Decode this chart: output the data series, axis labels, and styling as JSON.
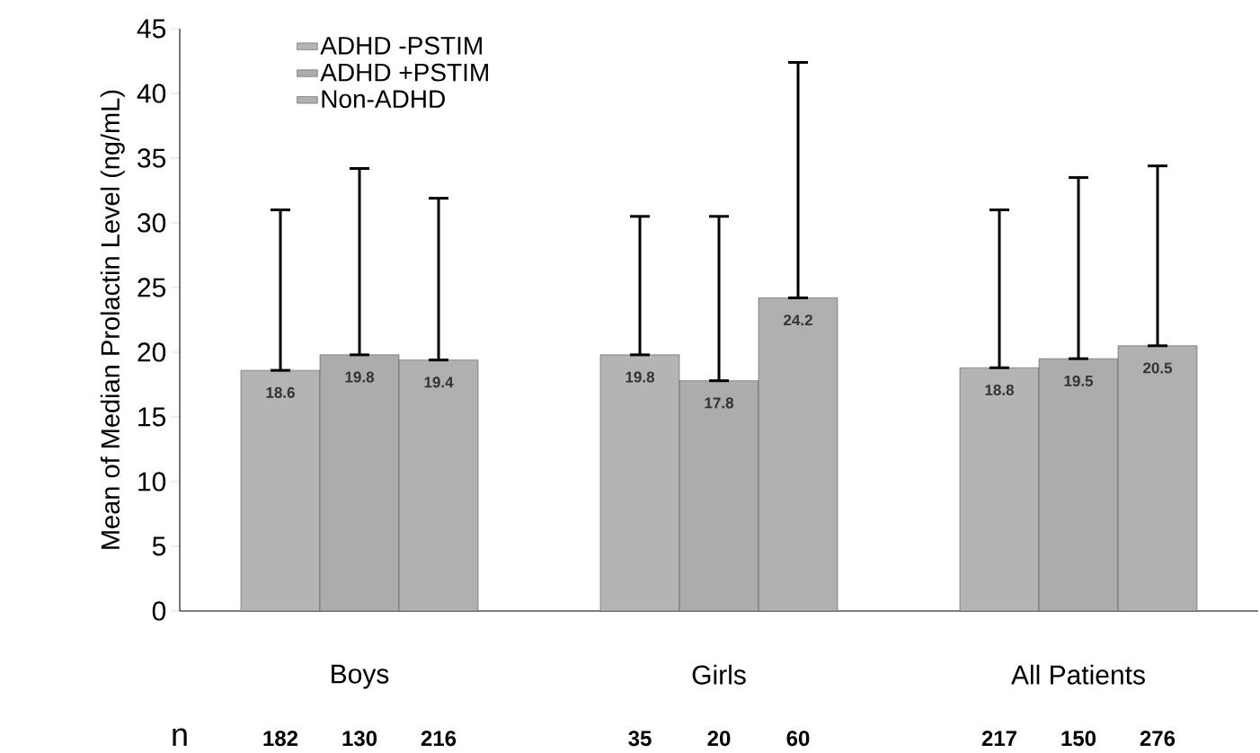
{
  "chart_data": {
    "type": "bar",
    "ylabel": "Mean of Median Prolactin Level (ng/mL)",
    "categories": [
      "Boys",
      "Girls",
      "All Patients"
    ],
    "series": [
      {
        "name": "ADHD -PSTIM",
        "color": "#b4b4b4",
        "values": [
          18.6,
          19.8,
          18.8
        ],
        "errors": [
          [
            18.6,
            31.0
          ],
          [
            19.8,
            30.5
          ],
          [
            18.8,
            31.0
          ]
        ]
      },
      {
        "name": "ADHD +PSTIM",
        "color": "#acacac",
        "values": [
          19.8,
          17.8,
          19.5
        ],
        "errors": [
          [
            19.8,
            34.2
          ],
          [
            17.8,
            30.5
          ],
          [
            19.5,
            33.5
          ]
        ]
      },
      {
        "name": "Non-ADHD",
        "color": "#b0b0b0",
        "values": [
          19.4,
          24.2,
          20.5
        ],
        "errors": [
          [
            19.4,
            31.9
          ],
          [
            24.2,
            42.4
          ],
          [
            20.5,
            34.4
          ]
        ]
      }
    ],
    "ylim": [
      0,
      45
    ],
    "yticks": [
      0,
      5,
      10,
      15,
      20,
      25,
      30,
      35,
      40,
      45
    ],
    "data_labels": true,
    "legend": "top left",
    "annotations": [
      "n",
      "182",
      "130",
      "216",
      "35",
      "20",
      "60",
      "217",
      "150",
      "276"
    ]
  }
}
